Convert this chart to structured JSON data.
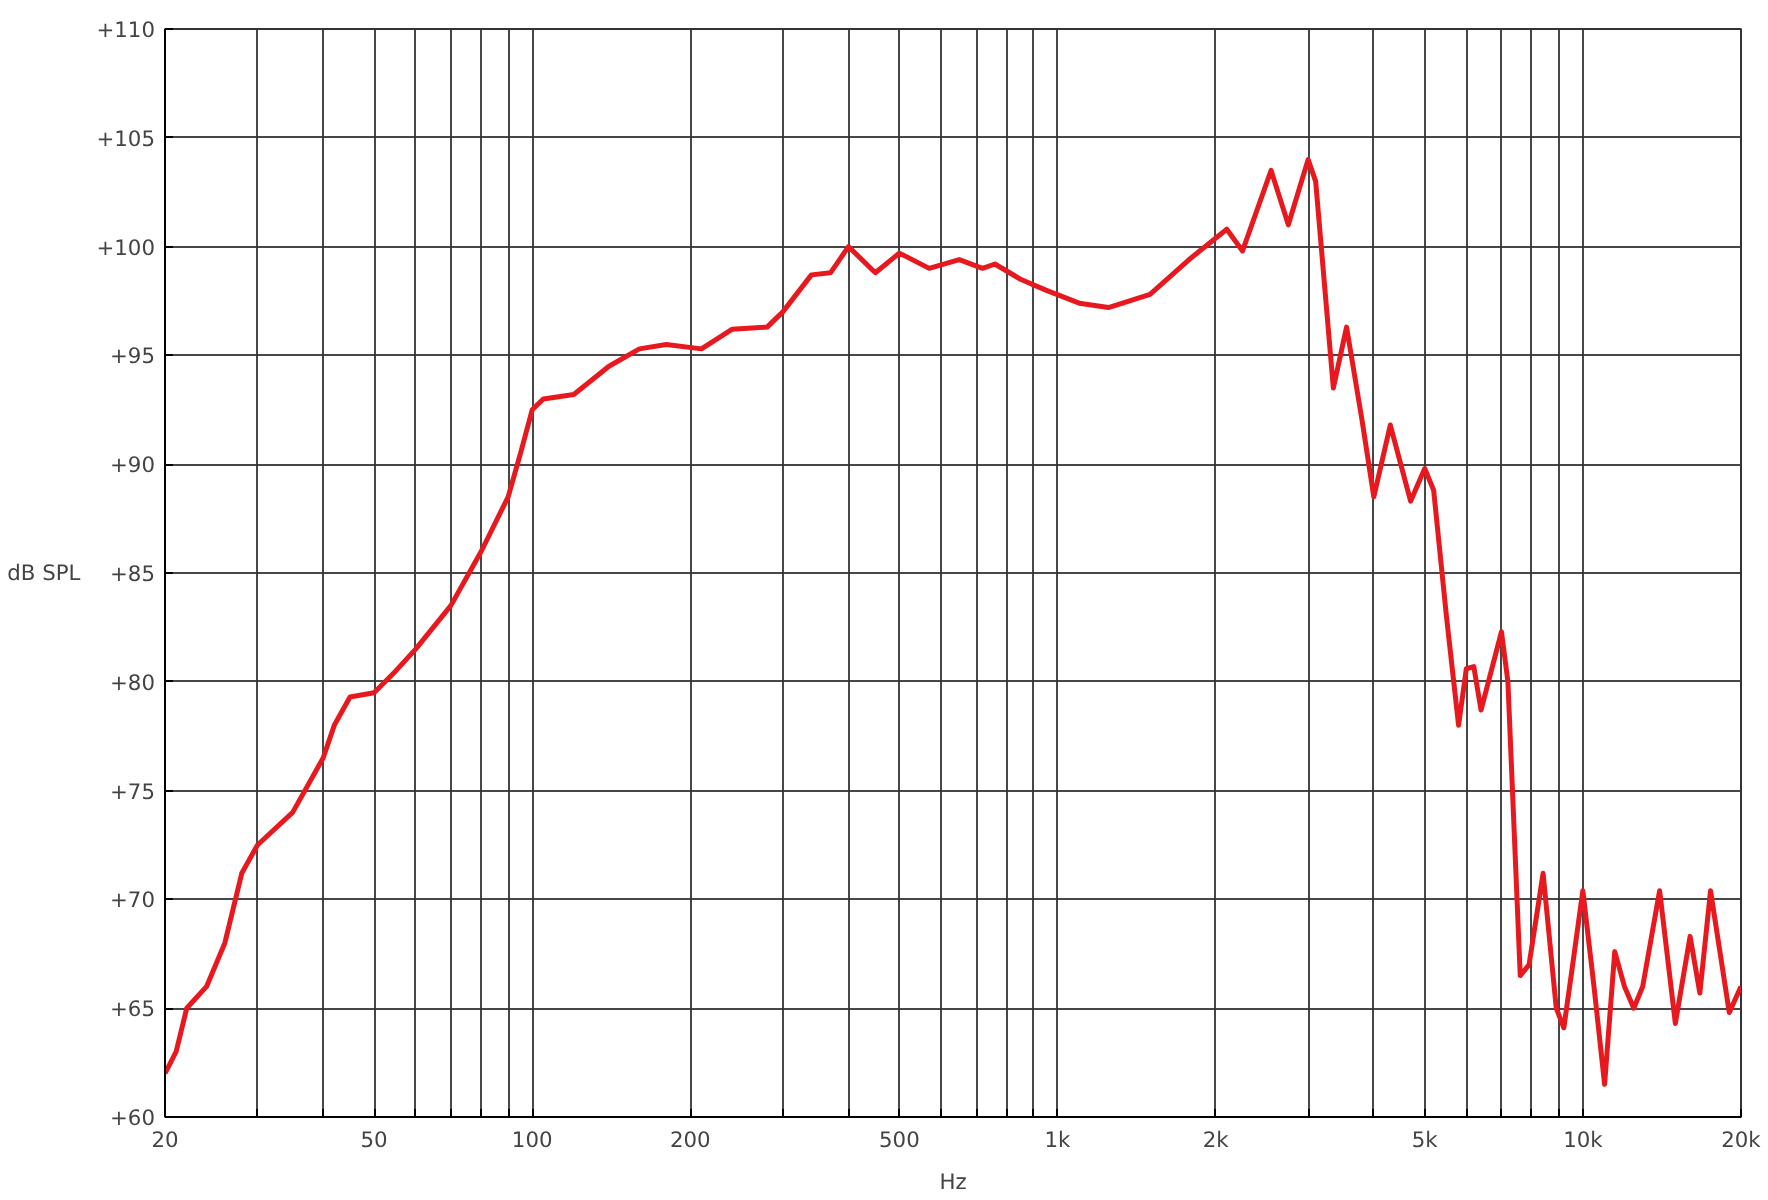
{
  "chart_data": {
    "type": "line",
    "xlabel": "Hz",
    "ylabel": "dB SPL",
    "log": "x",
    "grid": true,
    "marker": "none",
    "line_style": "solid",
    "xlim": [
      20,
      20000
    ],
    "ylim": [
      60,
      110
    ],
    "xticks": [
      20,
      {
        "value": 30,
        "label": null
      },
      {
        "value": 40,
        "label": null
      },
      50,
      {
        "value": 60,
        "label": null
      },
      {
        "value": 70,
        "label": null
      },
      {
        "value": 80,
        "label": null
      },
      {
        "value": 90,
        "label": null
      },
      100,
      200,
      {
        "value": 300,
        "label": null
      },
      {
        "value": 400,
        "label": null
      },
      500,
      {
        "value": 600,
        "label": null
      },
      {
        "value": 700,
        "label": null
      },
      {
        "value": 800,
        "label": null
      },
      {
        "value": 900,
        "label": null
      },
      {
        "value": 1000,
        "label": "1k"
      },
      {
        "value": 2000,
        "label": "2k"
      },
      {
        "value": 3000,
        "label": null
      },
      {
        "value": 4000,
        "label": null
      },
      {
        "value": 5000,
        "label": "5k"
      },
      {
        "value": 6000,
        "label": null
      },
      {
        "value": 7000,
        "label": null
      },
      {
        "value": 8000,
        "label": null
      },
      {
        "value": 9000,
        "label": null
      },
      {
        "value": 10000,
        "label": "10k"
      },
      {
        "value": 20000,
        "label": "20k"
      }
    ],
    "yticks": [
      {
        "value": 60,
        "label": "+60"
      },
      {
        "value": 65,
        "label": "+65"
      },
      {
        "value": 70,
        "label": "+70"
      },
      {
        "value": 75,
        "label": "+75"
      },
      {
        "value": 80,
        "label": "+80"
      },
      {
        "value": 85,
        "label": "+85"
      },
      {
        "value": 90,
        "label": "+90"
      },
      {
        "value": 95,
        "label": "+95"
      },
      {
        "value": 100,
        "label": "+100"
      },
      {
        "value": 105,
        "label": "+105"
      },
      {
        "value": 110,
        "label": "+110"
      }
    ],
    "x": [
      20,
      21,
      22,
      24,
      26,
      28,
      30,
      35,
      40,
      42,
      45,
      50,
      55,
      60,
      70,
      80,
      90,
      95,
      100,
      105,
      120,
      140,
      160,
      180,
      210,
      240,
      280,
      300,
      340,
      370,
      400,
      450,
      500,
      570,
      650,
      720,
      760,
      850,
      950,
      1100,
      1250,
      1500,
      1800,
      2100,
      2250,
      2550,
      2750,
      3000,
      3100,
      3350,
      3550,
      3800,
      4000,
      4300,
      4700,
      5000,
      5200,
      5500,
      5800,
      6000,
      6200,
      6400,
      7000,
      7200,
      7600,
      7900,
      8400,
      8900,
      9200,
      9500,
      10000,
      10500,
      11000,
      11500,
      12000,
      12500,
      13000,
      14000,
      15000,
      16000,
      16700,
      17500,
      19000,
      20000
    ],
    "series": [
      {
        "color": "#e8191e",
        "values": [
          62,
          63,
          65,
          66,
          68,
          71.2,
          72.5,
          74,
          76.5,
          78,
          79.3,
          79.5,
          80.5,
          81.5,
          83.5,
          86,
          88.5,
          90.5,
          92.5,
          93,
          93.2,
          94.5,
          95.3,
          95.5,
          95.3,
          96.2,
          96.3,
          97,
          98.7,
          98.8,
          100,
          98.8,
          99.7,
          99,
          99.4,
          99,
          99.2,
          98.5,
          98,
          97.4,
          97.2,
          97.8,
          99.5,
          100.8,
          99.8,
          103.5,
          101,
          104,
          103,
          93.5,
          96.3,
          92,
          88.5,
          91.8,
          88.3,
          89.8,
          88.8,
          83,
          78,
          80.6,
          80.7,
          78.7,
          82.3,
          80,
          66.5,
          67,
          71.2,
          65,
          64.1,
          66.5,
          70.4,
          66,
          61.5,
          67.6,
          66,
          65,
          66,
          70.4,
          64.3,
          68.3,
          65.7,
          70.4,
          64.8,
          66
        ]
      }
    ]
  }
}
